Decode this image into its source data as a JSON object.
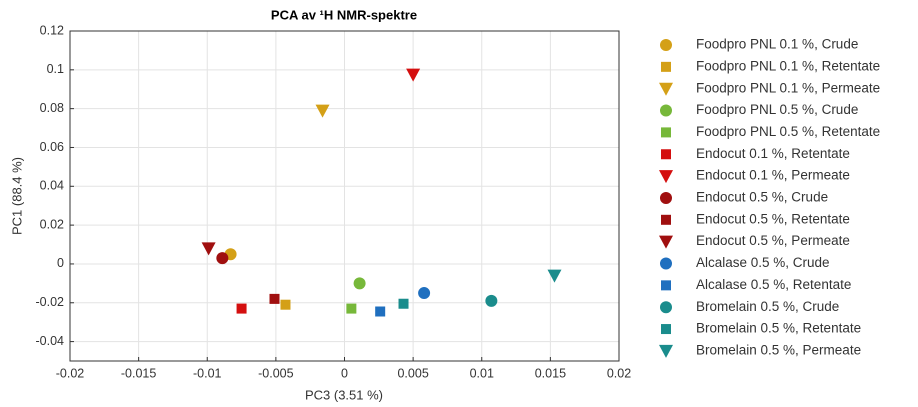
{
  "chart_data": {
    "type": "scatter",
    "title": "PCA av ¹H NMR-spektre",
    "xlabel": "PC3 (3.51 %)",
    "ylabel": "PC1 (88.4 %)",
    "xlim": [
      -0.02,
      0.02
    ],
    "xticks": [
      -0.02,
      -0.015,
      -0.01,
      -0.005,
      0,
      0.005,
      0.01,
      0.015,
      0.02
    ],
    "ylim": [
      -0.05,
      0.12
    ],
    "yticks": [
      -0.04,
      -0.02,
      0,
      0.02,
      0.04,
      0.06,
      0.08,
      0.1,
      0.12
    ],
    "grid": true,
    "legend": "outside right",
    "series": [
      {
        "name": "Foodpro PNL 0.1 %, Crude",
        "color": "#d4a017",
        "marker": "circle",
        "x": [
          -0.0083
        ],
        "values": [
          0.005
        ]
      },
      {
        "name": "Foodpro PNL 0.1 %, Retentate",
        "color": "#d4a017",
        "marker": "square",
        "x": [
          -0.0043
        ],
        "values": [
          -0.021
        ]
      },
      {
        "name": "Foodpro PNL 0.1 %, Permeate",
        "color": "#d4a017",
        "marker": "triangle",
        "x": [
          -0.0016
        ],
        "values": [
          0.079
        ]
      },
      {
        "name": "Foodpro PNL 0.5 %, Crude",
        "color": "#77b83a",
        "marker": "circle",
        "x": [
          0.0011
        ],
        "values": [
          -0.01
        ]
      },
      {
        "name": "Foodpro PNL 0.5 %, Retentate",
        "color": "#77b83a",
        "marker": "square",
        "x": [
          0.0005
        ],
        "values": [
          -0.023
        ]
      },
      {
        "name": "Endocut 0.1 %, Retentate",
        "color": "#d40f0f",
        "marker": "square",
        "x": [
          -0.0075
        ],
        "values": [
          -0.023
        ]
      },
      {
        "name": "Endocut 0.1 %, Permeate",
        "color": "#d40f0f",
        "marker": "triangle",
        "x": [
          0.005
        ],
        "values": [
          0.0975
        ]
      },
      {
        "name": "Endocut 0.5 %, Crude",
        "color": "#a00f0f",
        "marker": "circle",
        "x": [
          -0.0089
        ],
        "values": [
          0.003
        ]
      },
      {
        "name": "Endocut 0.5 %, Retentate",
        "color": "#a00f0f",
        "marker": "square",
        "x": [
          -0.0051
        ],
        "values": [
          -0.018
        ]
      },
      {
        "name": "Endocut 0.5 %, Permeate",
        "color": "#a00f0f",
        "marker": "triangle",
        "x": [
          -0.0099
        ],
        "values": [
          0.008
        ]
      },
      {
        "name": "Alcalase 0.5 %, Crude",
        "color": "#1f6fbf",
        "marker": "circle",
        "x": [
          0.0058
        ],
        "values": [
          -0.015
        ]
      },
      {
        "name": "Alcalase 0.5 %, Retentate",
        "color": "#1f6fbf",
        "marker": "square",
        "x": [
          0.0026
        ],
        "values": [
          -0.0245
        ]
      },
      {
        "name": "Bromelain 0.5 %, Crude",
        "color": "#1a8c8c",
        "marker": "circle",
        "x": [
          0.0107
        ],
        "values": [
          -0.019
        ]
      },
      {
        "name": "Bromelain 0.5 %, Retentate",
        "color": "#1a8c8c",
        "marker": "square",
        "x": [
          0.0043
        ],
        "values": [
          -0.0205
        ]
      },
      {
        "name": "Bromelain 0.5 %, Permeate",
        "color": "#1a8c8c",
        "marker": "triangle",
        "x": [
          0.0153
        ],
        "values": [
          -0.006
        ]
      }
    ]
  }
}
